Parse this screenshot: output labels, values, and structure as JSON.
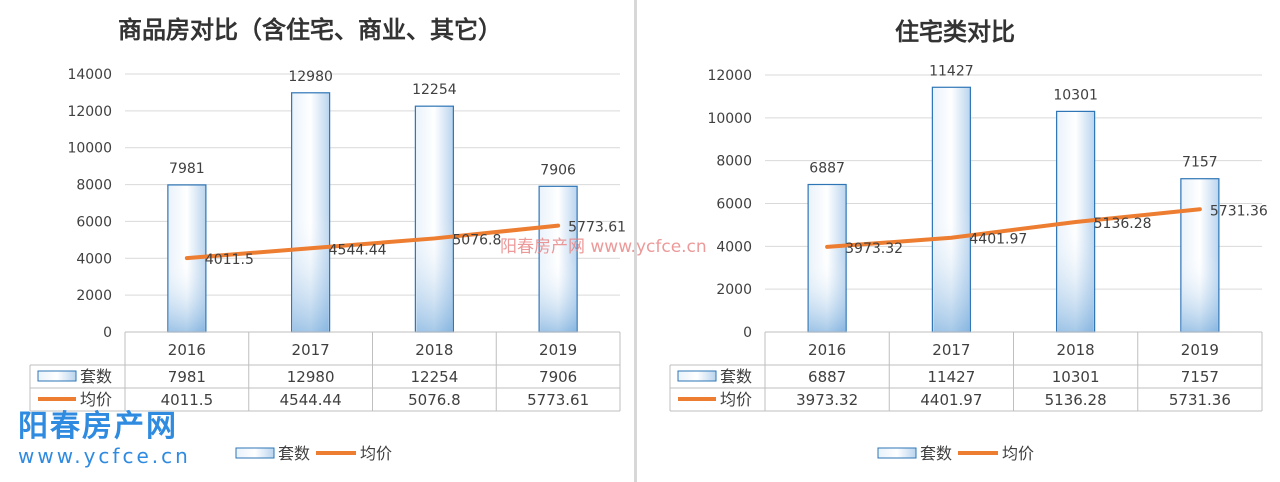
{
  "chart_data": [
    {
      "type": "bar+line",
      "title": "商品房对比（含住宅、商业、其它）",
      "categories": [
        "2016",
        "2017",
        "2018",
        "2019"
      ],
      "ylim": [
        0,
        14000
      ],
      "yticks": [
        0,
        2000,
        4000,
        6000,
        8000,
        10000,
        12000,
        14000
      ],
      "grid": true,
      "legend_placement": "bottom",
      "series": [
        {
          "name": "套数",
          "kind": "bar",
          "values": [
            7981,
            12980,
            12254,
            7906
          ],
          "labels": [
            "7981",
            "12980",
            "12254",
            "7906"
          ],
          "color": "#9cc3e6"
        },
        {
          "name": "均价",
          "kind": "line",
          "values": [
            4011.5,
            4544.44,
            5076.8,
            5773.61
          ],
          "labels": [
            "4011.5",
            "4544.44",
            "5076.8",
            "5773.61"
          ],
          "color": "#ed7d31"
        }
      ],
      "data_table": true
    },
    {
      "type": "bar+line",
      "title": "住宅类对比",
      "categories": [
        "2016",
        "2017",
        "2018",
        "2019"
      ],
      "ylim": [
        0,
        12000
      ],
      "yticks": [
        0,
        2000,
        4000,
        6000,
        8000,
        10000,
        12000
      ],
      "grid": true,
      "legend_placement": "bottom",
      "series": [
        {
          "name": "套数",
          "kind": "bar",
          "values": [
            6887,
            11427,
            10301,
            7157
          ],
          "labels": [
            "6887",
            "11427",
            "10301",
            "7157"
          ],
          "color": "#9cc3e6"
        },
        {
          "name": "均价",
          "kind": "line",
          "values": [
            3973.32,
            4401.97,
            5136.28,
            5731.36
          ],
          "labels": [
            "3973.32",
            "4401.97",
            "5136.28",
            "5731.36"
          ],
          "color": "#ed7d31"
        }
      ],
      "data_table": true
    }
  ],
  "watermark": {
    "center": "阳春房产网  www.ycfce.cn",
    "logo_cn": "阳春房产网",
    "logo_url": "www.ycfce.cn"
  }
}
